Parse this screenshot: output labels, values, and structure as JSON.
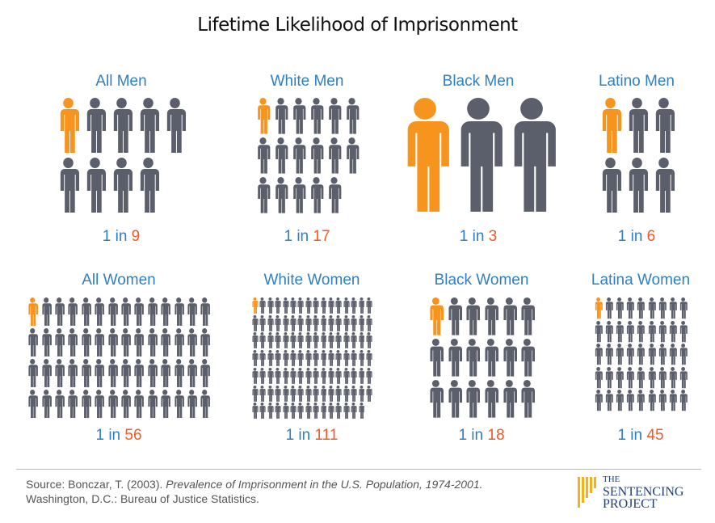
{
  "title": "Lifetime Likelihood of Imprisonment",
  "colors": {
    "highlight": "#f7941d",
    "figure": "#5b5f6b",
    "label_blue": "#2f7fc1",
    "number_orange": "#f05a28"
  },
  "chart_data": {
    "type": "pictogram",
    "title": "Lifetime Likelihood of Imprisonment",
    "groups": [
      {
        "name": "All Men",
        "prefix": "1 in",
        "value": 9
      },
      {
        "name": "White Men",
        "prefix": "1 in",
        "value": 17
      },
      {
        "name": "Black Men",
        "prefix": "1 in",
        "value": 3
      },
      {
        "name": "Latino Men",
        "prefix": "1 in",
        "value": 6
      },
      {
        "name": "All Women",
        "prefix": "1 in",
        "value": 56
      },
      {
        "name": "White Women",
        "prefix": "1 in",
        "value": 111
      },
      {
        "name": "Black Women",
        "prefix": "1 in",
        "value": 18
      },
      {
        "name": "Latina Women",
        "prefix": "1 in",
        "value": 45
      }
    ]
  },
  "source": {
    "prefix": "Source: Bonczar, T. (2003).",
    "publication": "Prevalence of Imprisonment in the U.S. Population, 1974-2001.",
    "line2": "Washington, D.C.: Bureau of Justice Statistics."
  },
  "logo": {
    "line1": "THE",
    "line2": "SENTENCING",
    "line3": "PROJECT"
  }
}
